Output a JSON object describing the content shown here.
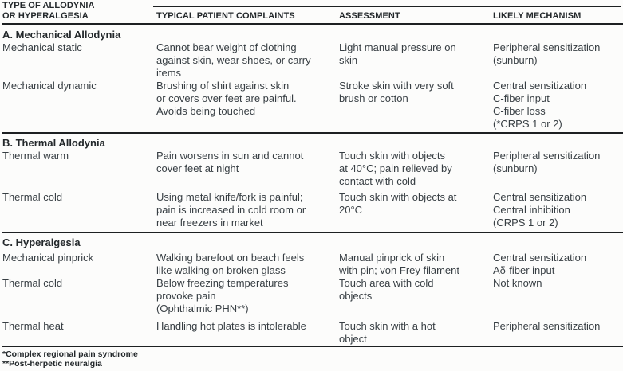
{
  "table": {
    "headers": [
      "TYPE OF ALLODYNIA\nOR HYPERALGESIA",
      "TYPICAL PATIENT COMPLAINTS",
      "ASSESSMENT",
      "LIKELY MECHANISM"
    ],
    "sections": [
      {
        "title": "A. Mechanical Allodynia",
        "rows": [
          {
            "type": "Mechanical static",
            "complaint": "Cannot bear weight of clothing\nagainst skin, wear shoes, or carry\nitems",
            "assessment": "Light manual pressure on\nskin",
            "mechanism": "Peripheral sensitization\n(sunburn)"
          },
          {
            "type": "Mechanical dynamic",
            "complaint": "Brushing of shirt against skin\nor covers over feet are painful.\nAvoids being touched",
            "assessment": "Stroke skin with very soft\nbrush or cotton",
            "mechanism": "Central sensitization\nC-fiber input\nC-fiber loss\n(*CRPS 1 or 2)"
          }
        ]
      },
      {
        "title": "B. Thermal Allodynia",
        "rows": [
          {
            "type": "Thermal warm",
            "complaint": "Pain worsens in sun and cannot\ncover feet at night",
            "assessment": "Touch skin with objects\nat 40°C; pain relieved by\ncontact with cold",
            "mechanism": "Peripheral sensitization\n(sunburn)"
          },
          {
            "type": "Thermal cold",
            "complaint": "Using metal knife/fork is painful;\npain is increased in cold room or\nnear freezers in market",
            "assessment": "Touch skin with objects at\n20°C",
            "mechanism": "Central sensitization\nCentral inhibition\n(CRPS 1 or 2)"
          }
        ]
      },
      {
        "title": "C. Hyperalgesia",
        "rows": [
          {
            "type": "Mechanical pinprick",
            "complaint": "Walking barefoot on beach feels\nlike walking on broken glass",
            "assessment": "Manual pinprick of skin\nwith pin; von Frey filament",
            "mechanism": "Central sensitization\nAδ-fiber input"
          },
          {
            "type": "Thermal cold",
            "complaint": "Below freezing temperatures\nprovoke pain\n(Ophthalmic PHN**)",
            "assessment": "Touch area with cold\nobjects",
            "mechanism": "Not known"
          },
          {
            "type": "Thermal heat",
            "complaint": "Handling hot plates is intolerable",
            "assessment": "Touch skin with a hot\nobject",
            "mechanism": "Peripheral sensitization"
          }
        ]
      }
    ],
    "footnotes": [
      "*Complex regional pain syndrome",
      "**Post-herpetic neuralgia"
    ]
  }
}
